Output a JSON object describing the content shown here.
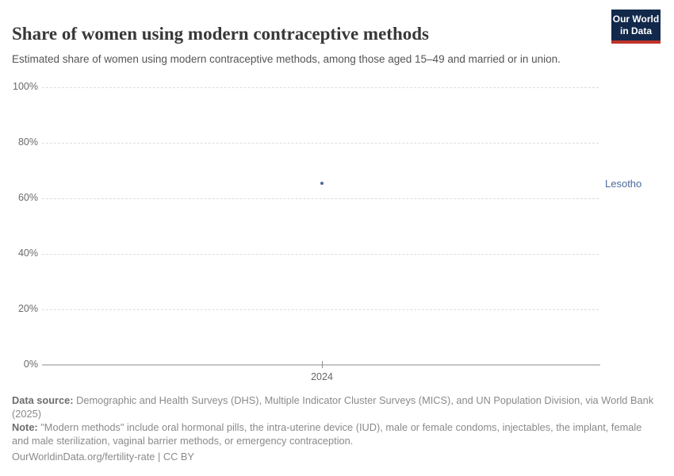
{
  "header": {
    "title": "Share of women using modern contraceptive methods",
    "subtitle": "Estimated share of women using modern contraceptive methods, among those aged 15–49 and married or in union.",
    "logo": {
      "line1": "Our World",
      "line2": "in Data",
      "bg_color": "#12294b",
      "accent_color": "#c0342c",
      "text_color": "#ffffff"
    }
  },
  "chart_data": {
    "type": "scatter",
    "title": "Share of women using modern contraceptive methods",
    "x": [
      2024
    ],
    "series": [
      {
        "name": "Lesotho",
        "values": [
          65.4
        ],
        "color": "#4c6a9c"
      }
    ],
    "x_tick_labels": [
      "2024"
    ],
    "y_ticks": [
      0,
      20,
      40,
      60,
      80,
      100
    ],
    "y_tick_suffix": "%",
    "ylim": [
      0,
      100
    ],
    "xlabel": "",
    "ylabel": "",
    "grid": "horizontal-dashed",
    "legend_position": "right-entity-label",
    "gridline_color": "#dcdcdc",
    "axis_color": "#c6c6c6",
    "tick_label_color": "#6a6a6a",
    "x_tick_label_color": "#666666",
    "entity_label": "Lesotho",
    "entity_label_color": "#4c6a9c"
  },
  "footer": {
    "data_source_label": "Data source:",
    "data_source_text": "Demographic and Health Surveys (DHS), Multiple Indicator Cluster Surveys (MICS), and UN Population Division, via World Bank (2025)",
    "note_label": "Note:",
    "note_text": "\"Modern methods\" include oral hormonal pills, the intra-uterine device (IUD), male or female condoms, injectables, the implant, female and male sterilization, vaginal barrier methods, or emergency contraception.",
    "citation": "OurWorldinData.org/fertility-rate | CC BY"
  }
}
